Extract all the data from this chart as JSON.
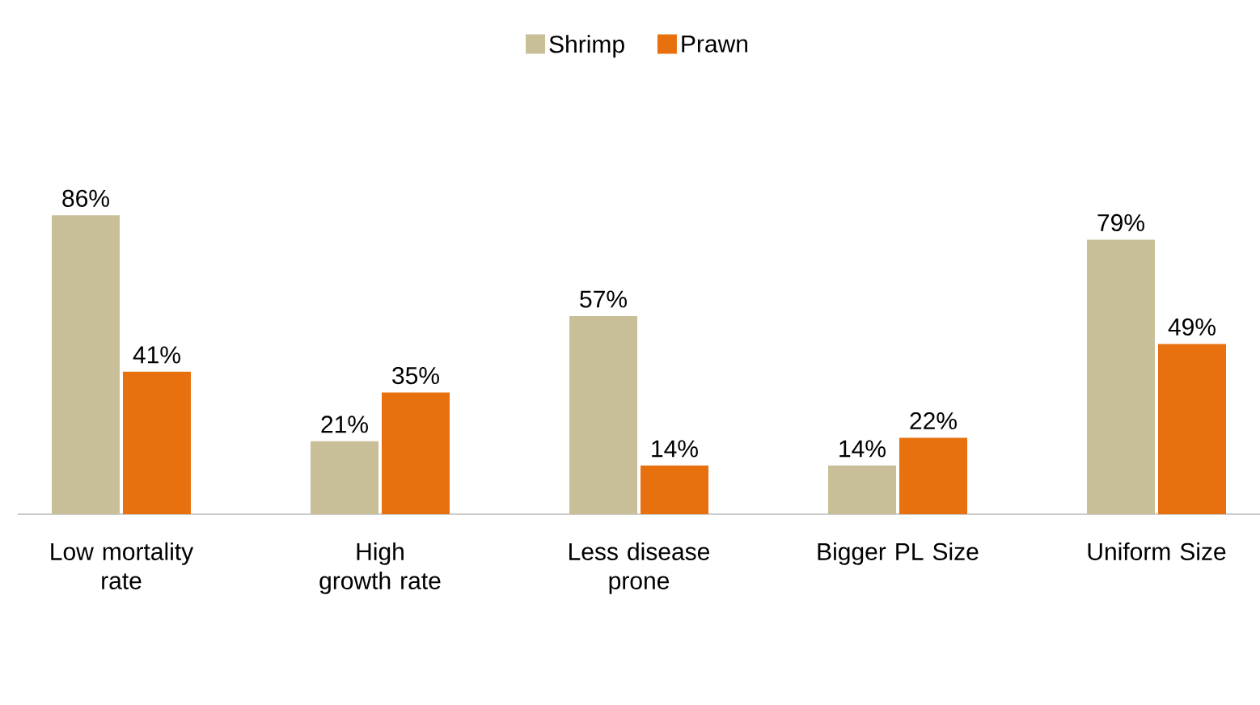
{
  "chart_data": {
    "type": "bar",
    "categories": [
      "Low mortality rate",
      "High growth rate",
      "Less disease prone",
      "Bigger PL Size",
      "Uniform Size"
    ],
    "series": [
      {
        "name": "Shrimp",
        "color": "#c8bf98",
        "values": [
          86,
          21,
          57,
          14,
          79
        ],
        "value_labels": [
          "86%",
          "21%",
          "57%",
          "14%",
          "79%"
        ]
      },
      {
        "name": "Prawn",
        "color": "#e8700f",
        "values": [
          41,
          35,
          14,
          22,
          49
        ],
        "value_labels": [
          "41%",
          "35%",
          "14%",
          "22%",
          "49%"
        ]
      }
    ],
    "legend": "top"
  }
}
